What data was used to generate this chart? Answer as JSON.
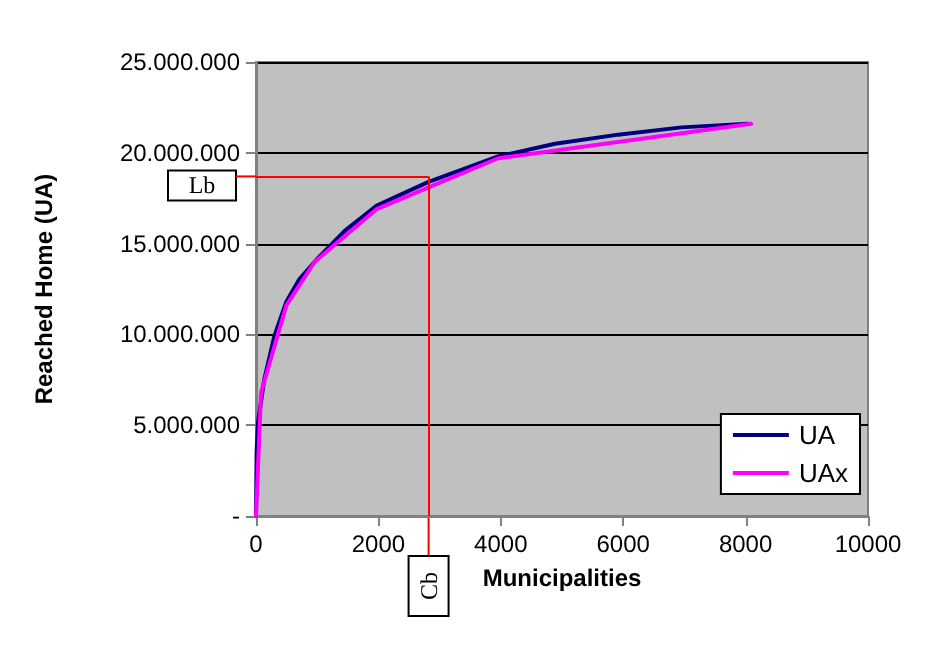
{
  "chart_data": {
    "type": "line",
    "xlabel": "Municipalities",
    "ylabel": "Reached Home (UA)",
    "xlim": [
      0,
      10000
    ],
    "xticks": [
      0,
      2000,
      4000,
      6000,
      8000,
      10000
    ],
    "ylim": [
      0,
      25000000
    ],
    "yticks": [
      {
        "value": 0,
        "label": "-"
      },
      {
        "value": 5000000,
        "label": "5.000.000"
      },
      {
        "value": 10000000,
        "label": "10.000.000"
      },
      {
        "value": 15000000,
        "label": "15.000.000"
      },
      {
        "value": 20000000,
        "label": "20.000.000"
      },
      {
        "value": 25000000,
        "label": "25.000.000"
      }
    ],
    "series": [
      {
        "name": "UA",
        "color": "#000080",
        "x": [
          0,
          10,
          31,
          134,
          300,
          496,
          700,
          1012,
          1450,
          1973,
          2820,
          3956,
          4886,
          5919,
          6952,
          8037
        ],
        "values": [
          0,
          3500000,
          5100000,
          7500000,
          9900000,
          11800000,
          13000000,
          14200000,
          15700000,
          17100000,
          18400000,
          19800000,
          20500000,
          21000000,
          21400000,
          21600000
        ]
      },
      {
        "name": "UAx",
        "color": "#ff00ff",
        "x": [
          0,
          83,
          496,
          960,
          1973,
          2820,
          3956,
          8090
        ],
        "values": [
          0,
          6800000,
          11600000,
          14000000,
          16900000,
          18100000,
          19700000,
          21600000
        ]
      }
    ],
    "ref_lines": [
      {
        "axis": "y",
        "value": 18700000,
        "label": "Lb",
        "color": "#ff0000"
      },
      {
        "axis": "x",
        "value": 2820,
        "label": "Cb",
        "color": "#ff0000"
      }
    ],
    "grid": "y",
    "legend": "bottom right",
    "marker": "none",
    "line_style": "solid"
  }
}
